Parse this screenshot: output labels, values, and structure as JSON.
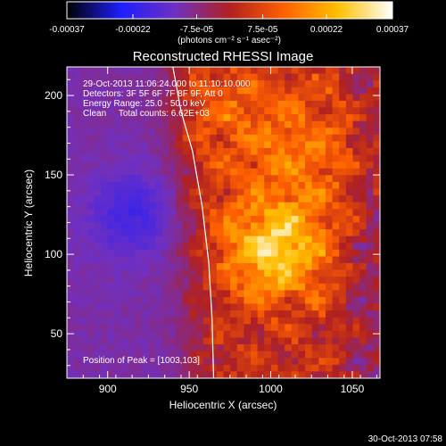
{
  "chart_data": {
    "type": "heatmap",
    "title": "Reconstructed RHESSI Image",
    "xlabel": "Heliocentric X (arcsec)",
    "ylabel": "Heliocentric Y (arcsec)",
    "xlim": [
      875,
      1067
    ],
    "ylim": [
      22,
      218
    ],
    "x_ticks": [
      {
        "value": 900,
        "label": "900"
      },
      {
        "value": 950,
        "label": "950"
      },
      {
        "value": 1000,
        "label": "1000"
      },
      {
        "value": 1050,
        "label": "1050"
      }
    ],
    "y_ticks": [
      {
        "value": 50,
        "label": "50"
      },
      {
        "value": 100,
        "label": "100"
      },
      {
        "value": 150,
        "label": "150"
      },
      {
        "value": 200,
        "label": "200"
      }
    ],
    "grid": false,
    "colorbar": {
      "orientation": "horizontal",
      "location": "top",
      "range": [
        -0.00037,
        0.00037
      ],
      "colormap": [
        "#000000",
        "#1e1eff",
        "#7030c0",
        "#b02020",
        "#ff6000",
        "#ffc000",
        "#ffffff"
      ],
      "tick_labels": [
        "-0.00037",
        "-0.00022",
        "-7.5e-05",
        "7.5e-05",
        "0.00022",
        "0.00037"
      ],
      "unit_label": "(photons cm⁻² s⁻¹ asec⁻²)"
    },
    "annotations": [
      "29-Oct-2013 11:06:24.000 to 11:10:10.000",
      "Detectors: 3F 5F 6F 7F 8F 9F, Att 0",
      "Energy Range: 25.0 - 50.0 keV",
      "Clean     Total counts: 6.62E+03"
    ],
    "peak_label": "Position of Peak = [1003,103]",
    "peak": {
      "x": 1003,
      "y": 103
    },
    "limb_line": [
      {
        "x": 940,
        "y": 218
      },
      {
        "x": 945,
        "y": 190
      },
      {
        "x": 952,
        "y": 165
      },
      {
        "x": 958,
        "y": 130
      },
      {
        "x": 962,
        "y": 95
      },
      {
        "x": 964,
        "y": 60
      },
      {
        "x": 965,
        "y": 22
      }
    ]
  },
  "footer": {
    "timestamp": "30-Oct-2013 07:58"
  }
}
